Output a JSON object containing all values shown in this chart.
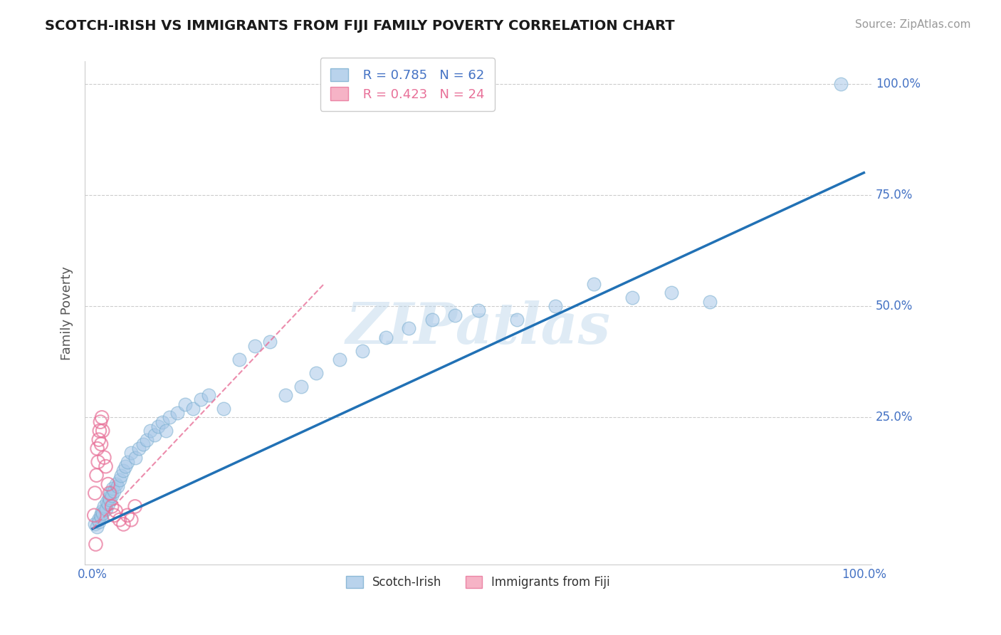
{
  "title": "SCOTCH-IRISH VS IMMIGRANTS FROM FIJI FAMILY POVERTY CORRELATION CHART",
  "source": "Source: ZipAtlas.com",
  "ylabel": "Family Poverty",
  "watermark": "ZIPatlas",
  "blue_R": 0.785,
  "blue_N": 62,
  "pink_R": 0.423,
  "pink_N": 24,
  "blue_color": "#a8c8e8",
  "blue_edge_color": "#7aaed0",
  "pink_color": "#f4a0b8",
  "pink_edge_color": "#e87098",
  "blue_line_color": "#2171b5",
  "pink_line_color": "#e87098",
  "legend_label_blue": "Scotch-Irish",
  "legend_label_pink": "Immigrants from Fiji",
  "ytick_color": "#4472c4",
  "xtick_color": "#4472c4",
  "blue_scatter_x": [
    0.3,
    0.5,
    0.7,
    0.8,
    1.0,
    1.1,
    1.2,
    1.3,
    1.5,
    1.7,
    1.8,
    2.0,
    2.1,
    2.2,
    2.3,
    2.5,
    2.6,
    2.8,
    3.0,
    3.2,
    3.5,
    3.7,
    4.0,
    4.2,
    4.5,
    5.0,
    5.5,
    6.0,
    6.5,
    7.0,
    7.5,
    8.0,
    8.5,
    9.0,
    9.5,
    10.0,
    11.0,
    12.0,
    13.0,
    14.0,
    15.0,
    17.0,
    19.0,
    21.0,
    23.0,
    25.0,
    27.0,
    29.0,
    32.0,
    35.0,
    38.0,
    41.0,
    44.0,
    47.0,
    50.0,
    55.0,
    60.0,
    65.0,
    70.0,
    75.0,
    80.0,
    97.0
  ],
  "blue_scatter_y": [
    1.0,
    0.5,
    2.0,
    1.5,
    3.0,
    2.5,
    4.0,
    3.5,
    5.0,
    4.5,
    6.0,
    5.5,
    7.0,
    6.5,
    8.0,
    7.5,
    9.0,
    8.5,
    10.0,
    9.5,
    11.0,
    12.0,
    13.0,
    14.0,
    15.0,
    17.0,
    16.0,
    18.0,
    19.0,
    20.0,
    22.0,
    21.0,
    23.0,
    24.0,
    22.0,
    25.0,
    26.0,
    28.0,
    27.0,
    29.0,
    30.0,
    27.0,
    38.0,
    41.0,
    42.0,
    30.0,
    32.0,
    35.0,
    38.0,
    40.0,
    43.0,
    45.0,
    47.0,
    48.0,
    49.0,
    47.0,
    50.0,
    55.0,
    52.0,
    53.0,
    51.0,
    100.0
  ],
  "pink_scatter_x": [
    0.2,
    0.3,
    0.5,
    0.6,
    0.7,
    0.8,
    0.9,
    1.0,
    1.1,
    1.2,
    1.3,
    1.5,
    1.7,
    2.0,
    2.2,
    2.5,
    2.8,
    3.0,
    3.5,
    4.0,
    4.5,
    5.0,
    5.5,
    0.4
  ],
  "pink_scatter_y": [
    3.0,
    8.0,
    12.0,
    18.0,
    15.0,
    20.0,
    22.0,
    24.0,
    19.0,
    25.0,
    22.0,
    16.0,
    14.0,
    10.0,
    8.0,
    5.0,
    3.0,
    4.0,
    2.0,
    1.0,
    3.0,
    2.0,
    5.0,
    -3.5
  ],
  "blue_line": [
    [
      0,
      100
    ],
    [
      0,
      80
    ]
  ],
  "pink_line": [
    [
      0,
      30
    ],
    [
      0,
      55
    ]
  ]
}
